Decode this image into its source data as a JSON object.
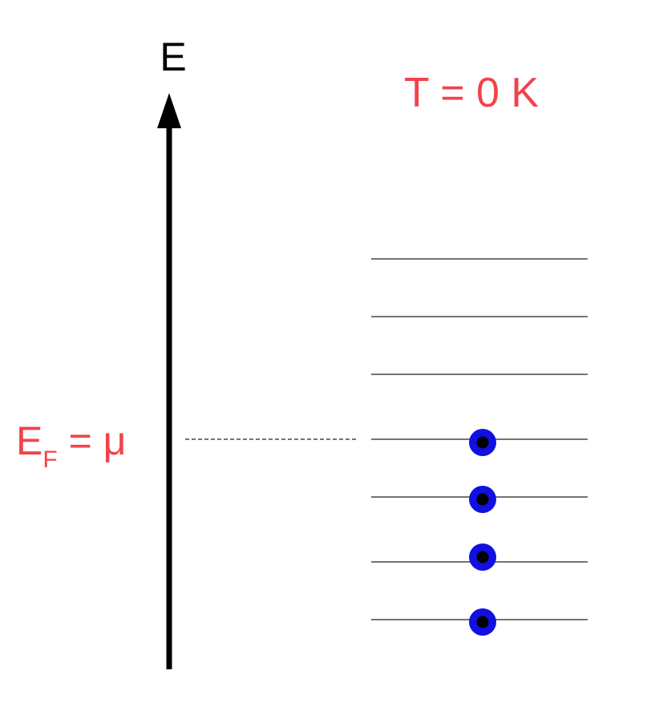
{
  "axis": {
    "label": "E"
  },
  "temperature_label": "T = 0 K",
  "fermi_label": {
    "main": "E",
    "subscript": "F",
    "rest": " = μ"
  },
  "energy_levels": {
    "total": 7,
    "occupied": 4,
    "fermi_level_index": 3
  },
  "colors": {
    "axis": "#000000",
    "label_red": "#f0444a",
    "electron_ring": "#1010e0",
    "electron_core": "#000000",
    "level_line": "#222222"
  }
}
